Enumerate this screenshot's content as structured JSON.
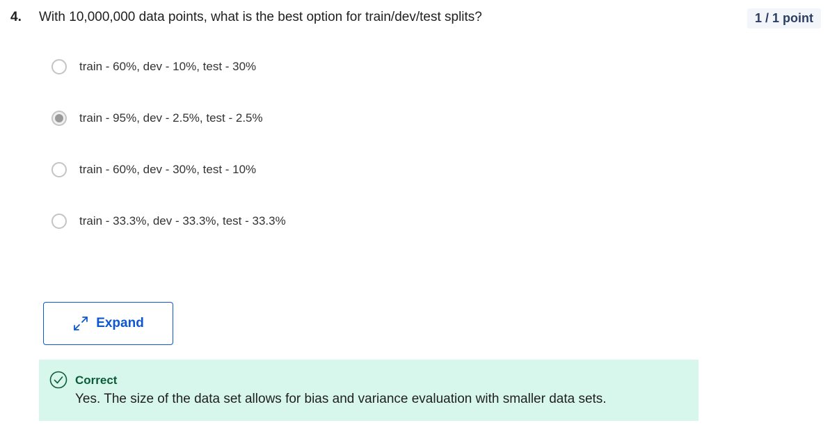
{
  "question": {
    "number": "4.",
    "text": "With 10,000,000 data points, what is the best option for train/dev/test splits?",
    "points": "1 / 1 point"
  },
  "options": [
    {
      "label": "train - 60%, dev - 10%, test - 30%",
      "selected": false
    },
    {
      "label": "train - 95%, dev - 2.5%, test - 2.5%",
      "selected": true
    },
    {
      "label": "train - 60%, dev - 30%, test - 10%",
      "selected": false
    },
    {
      "label": "train - 33.3%, dev - 33.3%, test - 33.3%",
      "selected": false
    }
  ],
  "expand": {
    "label": "Expand",
    "icon": "expand-arrows-icon"
  },
  "feedback": {
    "icon": "check-circle-icon",
    "title": "Correct",
    "text": "Yes. The size of the data set allows for bias and variance evaluation with smaller data sets."
  },
  "colors": {
    "accent": "#0b57d0",
    "feedback_bg": "#d7f7ec",
    "feedback_title": "#0b5c38",
    "badge_bg": "#f2f5f9"
  }
}
